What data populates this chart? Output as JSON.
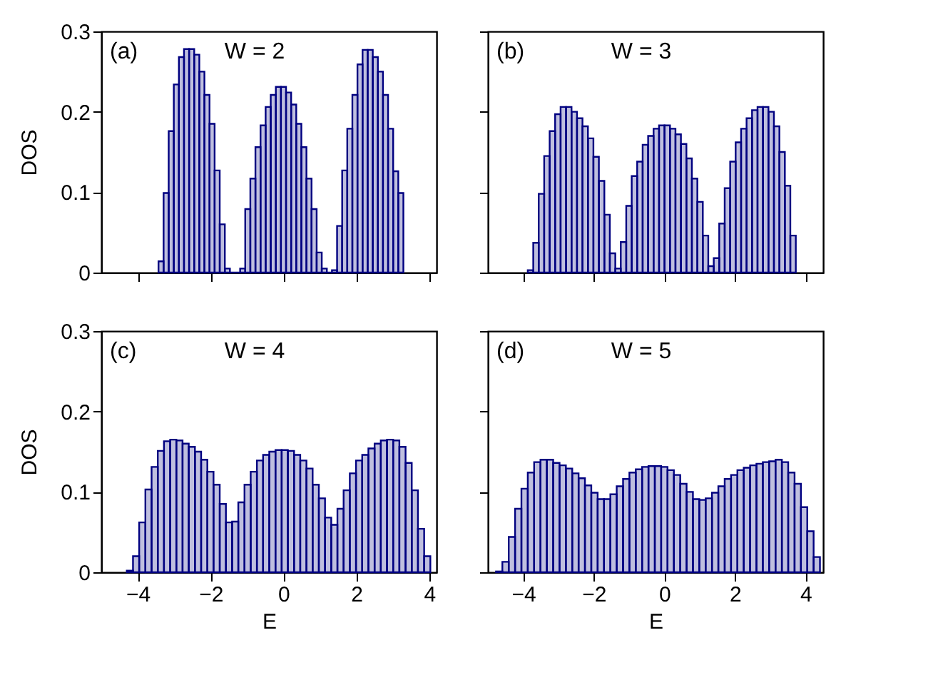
{
  "chart_data": [
    {
      "type": "histogram",
      "annotations": [
        "(a)",
        "W = 2"
      ],
      "ylabel": "DOS",
      "color": "#000080",
      "bins": [
        -3.43,
        -3.29,
        -3.15,
        -3.01,
        -2.87,
        -2.73,
        -2.59,
        -2.45,
        -2.31,
        -2.17,
        -2.03,
        -1.89,
        -1.75,
        -1.61,
        -1.47,
        -1.33,
        -1.19,
        -1.05,
        -0.91,
        -0.77,
        -0.63,
        -0.49,
        -0.35,
        -0.21,
        -0.07,
        0.07,
        0.21,
        0.35,
        0.49,
        0.63,
        0.77,
        0.91,
        1.05,
        1.19,
        1.33,
        1.47,
        1.61,
        1.75,
        1.89,
        2.03,
        2.17,
        2.31,
        2.45,
        2.59,
        2.73,
        2.87,
        3.01,
        3.15,
        3.29
      ],
      "values": [
        0.014,
        0.099,
        0.176,
        0.234,
        0.268,
        0.278,
        0.278,
        0.271,
        0.25,
        0.221,
        0.185,
        0.127,
        0.06,
        0.005,
        0,
        0,
        0.005,
        0.079,
        0.117,
        0.156,
        0.183,
        0.206,
        0.221,
        0.231,
        0.231,
        0.224,
        0.209,
        0.185,
        0.156,
        0.117,
        0.079,
        0.025,
        0.005,
        0,
        0.003,
        0.058,
        0.127,
        0.179,
        0.221,
        0.259,
        0.277,
        0.277,
        0.268,
        0.25,
        0.221,
        0.179,
        0.126,
        0.099
      ],
      "xlim": [
        -5,
        4.2
      ],
      "xticks": [
        -4,
        -2,
        0,
        2,
        4
      ],
      "ylim": [
        0,
        0.3
      ],
      "yticks": [
        0,
        0.1,
        0.2,
        0.3
      ],
      "tick_labels": "y",
      "grid": false
    },
    {
      "type": "histogram",
      "annotations": [
        "(b)",
        "W = 3"
      ],
      "color": "#000080",
      "bins": [
        -3.87,
        -3.715,
        -3.56,
        -3.405,
        -3.25,
        -3.095,
        -2.94,
        -2.785,
        -2.63,
        -2.475,
        -2.32,
        -2.165,
        -2.01,
        -1.855,
        -1.7,
        -1.545,
        -1.39,
        -1.235,
        -1.08,
        -0.925,
        -0.77,
        -0.615,
        -0.46,
        -0.305,
        -0.15,
        0.005,
        0.16,
        0.315,
        0.47,
        0.625,
        0.78,
        0.935,
        1.09,
        1.245,
        1.4,
        1.555,
        1.71,
        1.865,
        2.02,
        2.175,
        2.33,
        2.485,
        2.64,
        2.795,
        2.95,
        3.105,
        3.26,
        3.415,
        3.57,
        3.725
      ],
      "values": [
        0.003,
        0.037,
        0.098,
        0.145,
        0.176,
        0.197,
        0.206,
        0.206,
        0.2,
        0.192,
        0.182,
        0.167,
        0.144,
        0.114,
        0.072,
        0.024,
        0.005,
        0.038,
        0.083,
        0.12,
        0.138,
        0.159,
        0.17,
        0.179,
        0.183,
        0.183,
        0.179,
        0.172,
        0.16,
        0.142,
        0.117,
        0.088,
        0.046,
        0.008,
        0.018,
        0.061,
        0.105,
        0.138,
        0.162,
        0.179,
        0.192,
        0.202,
        0.206,
        0.206,
        0.2,
        0.182,
        0.15,
        0.108,
        0.046
      ],
      "xlim": [
        -5,
        4.5
      ],
      "xticks": [
        -4,
        -2,
        0,
        2,
        4
      ],
      "ylim": [
        0,
        0.3
      ],
      "yticks": [
        0,
        0.1,
        0.2,
        0.3
      ],
      "tick_labels": false,
      "grid": false
    },
    {
      "type": "histogram",
      "annotations": [
        "(c)",
        "W = 4"
      ],
      "ylabel": "DOS",
      "xlabel": "E",
      "color": "#000080",
      "bins": [
        -4.3,
        -4.13,
        -3.96,
        -3.79,
        -3.62,
        -3.45,
        -3.28,
        -3.11,
        -2.94,
        -2.77,
        -2.6,
        -2.43,
        -2.26,
        -2.09,
        -1.92,
        -1.75,
        -1.58,
        -1.41,
        -1.24,
        -1.07,
        -0.9,
        -0.73,
        -0.56,
        -0.39,
        -0.22,
        -0.05,
        0.12,
        0.29,
        0.46,
        0.63,
        0.8,
        0.97,
        1.14,
        1.31,
        1.48,
        1.65,
        1.82,
        1.99,
        2.16,
        2.33,
        2.5,
        2.67,
        2.84,
        3.01,
        3.18,
        3.35,
        3.52,
        3.69,
        3.86,
        4.03
      ],
      "values": [
        0.002,
        0.02,
        0.062,
        0.103,
        0.131,
        0.151,
        0.163,
        0.165,
        0.164,
        0.16,
        0.156,
        0.15,
        0.14,
        0.125,
        0.109,
        0.085,
        0.062,
        0.063,
        0.087,
        0.109,
        0.125,
        0.139,
        0.146,
        0.15,
        0.152,
        0.152,
        0.151,
        0.146,
        0.139,
        0.129,
        0.109,
        0.092,
        0.068,
        0.059,
        0.079,
        0.102,
        0.123,
        0.139,
        0.146,
        0.154,
        0.16,
        0.164,
        0.165,
        0.164,
        0.156,
        0.136,
        0.102,
        0.054,
        0.02
      ],
      "xlim": [
        -5,
        4.2
      ],
      "xticks": [
        -4,
        -2,
        0,
        2,
        4
      ],
      "ylim": [
        0,
        0.3
      ],
      "yticks": [
        0,
        0.1,
        0.2,
        0.3
      ],
      "grid": false
    },
    {
      "type": "histogram",
      "annotations": [
        "(d)",
        "W = 5"
      ],
      "xlabel": "E",
      "color": "#000080",
      "bins": [
        -4.77,
        -4.59,
        -4.41,
        -4.23,
        -4.05,
        -3.87,
        -3.69,
        -3.51,
        -3.33,
        -3.15,
        -2.97,
        -2.79,
        -2.61,
        -2.43,
        -2.25,
        -2.07,
        -1.89,
        -1.71,
        -1.53,
        -1.35,
        -1.17,
        -0.99,
        -0.81,
        -0.63,
        -0.45,
        -0.27,
        -0.09,
        0.09,
        0.27,
        0.45,
        0.63,
        0.81,
        0.99,
        1.17,
        1.35,
        1.53,
        1.71,
        1.89,
        2.07,
        2.25,
        2.43,
        2.61,
        2.79,
        2.97,
        3.15,
        3.33,
        3.51,
        3.69,
        3.87,
        4.05,
        4.23,
        4.41
      ],
      "values": [
        0.001,
        0.013,
        0.044,
        0.079,
        0.104,
        0.124,
        0.137,
        0.14,
        0.14,
        0.136,
        0.133,
        0.129,
        0.123,
        0.117,
        0.108,
        0.099,
        0.091,
        0.091,
        0.097,
        0.107,
        0.116,
        0.124,
        0.128,
        0.131,
        0.132,
        0.132,
        0.131,
        0.127,
        0.121,
        0.11,
        0.1,
        0.091,
        0.09,
        0.092,
        0.099,
        0.107,
        0.116,
        0.121,
        0.127,
        0.13,
        0.133,
        0.135,
        0.137,
        0.138,
        0.14,
        0.137,
        0.124,
        0.11,
        0.081,
        0.051,
        0.019
      ],
      "xlim": [
        -5,
        4.5
      ],
      "xticks": [
        -4,
        -2,
        0,
        2,
        4
      ],
      "ylim": [
        0,
        0.3
      ],
      "yticks": [
        0,
        0.1,
        0.2,
        0.3
      ],
      "tick_labels": "x",
      "grid": false
    }
  ]
}
